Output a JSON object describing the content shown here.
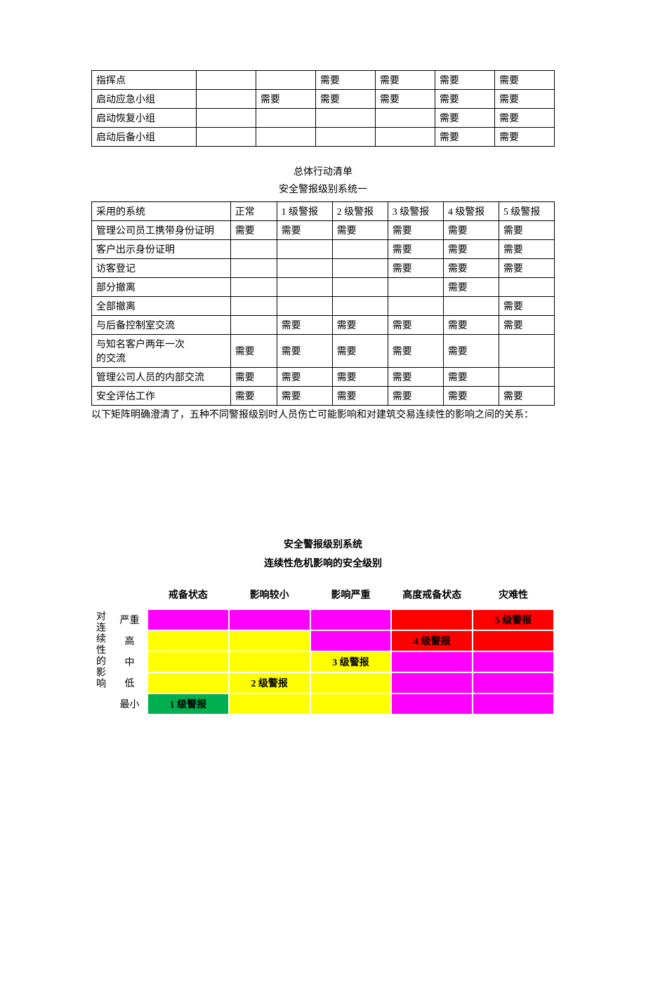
{
  "colors": {
    "text": "#000000",
    "background": "#ffffff",
    "border": "#000000",
    "cell_border": "#ffffff",
    "green": "#00b050",
    "yellow": "#ffff00",
    "magenta": "#ff00ff",
    "red": "#ff0000"
  },
  "table1": {
    "type": "table",
    "rows": [
      [
        "指挥点",
        "",
        "",
        "需要",
        "需要",
        "需要",
        "需要"
      ],
      [
        "启动应急小组",
        "",
        "需要",
        "需要",
        "需要",
        "需要",
        "需要"
      ],
      [
        "启动恢复小组",
        "",
        "",
        "",
        "",
        "需要",
        "需要"
      ],
      [
        "启动后备小组",
        "",
        "",
        "",
        "",
        "需要",
        "需要"
      ]
    ],
    "col_widths_pct": [
      21,
      12,
      12,
      12,
      12,
      12,
      12
    ]
  },
  "section_title1": "总体行动清单",
  "section_title2": "安全警报级别系统一",
  "table2": {
    "type": "table",
    "columns": [
      "采用的系统",
      "正常",
      "1 级警报",
      "2 级警报",
      "3 级警报",
      "4 级警报",
      "5 级警报"
    ],
    "rows": [
      [
        "管理公司员工携带身份证明",
        "需要",
        "需要",
        "需要",
        "需要",
        "需要",
        "需要"
      ],
      [
        "客户出示身份证明",
        "",
        "",
        "",
        "需要",
        "需要",
        "需要"
      ],
      [
        "访客登记",
        "",
        "",
        "",
        "需要",
        "需要",
        "需要"
      ],
      [
        "部分撤离",
        "",
        "",
        "",
        "",
        "需要",
        ""
      ],
      [
        "全部撤离",
        "",
        "",
        "",
        "",
        "",
        "需要"
      ],
      [
        "与后备控制室交流",
        "",
        "需要",
        "需要",
        "需要",
        "需要",
        "需要"
      ],
      [
        "与知名客户两年一次\n的交流",
        "需要",
        "需要",
        "需要",
        "需要",
        "需要",
        ""
      ],
      [
        "管理公司人员的内部交流",
        "需要",
        "需要",
        "需要",
        "需要",
        "需要",
        ""
      ],
      [
        "安全评估工作",
        "需要",
        "需要",
        "需要",
        "需要",
        "需要",
        "需要"
      ]
    ],
    "col_widths_pct": [
      30,
      10,
      12,
      12,
      12,
      12,
      12
    ]
  },
  "paragraph1": "以下矩阵明确澄清了，五种不同警报级别时人员伤亡可能影响和对建筑交易连续性的影响之间的关系：",
  "matrix": {
    "type": "heatmap",
    "title1": "安全警报级别系统",
    "title2": "连续性危机影响的安全级别",
    "vlabel": "对连续性的影响",
    "col_headers": [
      "戒备状态",
      "影响较小",
      "影响严重",
      "高度戒备状态",
      "灾难性"
    ],
    "row_headers": [
      "严重",
      "高",
      "中",
      "低",
      "最小"
    ],
    "cells": [
      [
        {
          "text": "",
          "color": "#ff00ff"
        },
        {
          "text": "",
          "color": "#ff00ff"
        },
        {
          "text": "",
          "color": "#ff00ff"
        },
        {
          "text": "",
          "color": "#ff0000"
        },
        {
          "text": "5 级警报",
          "color": "#ff0000",
          "text_color": "#000000"
        }
      ],
      [
        {
          "text": "",
          "color": "#ffff00"
        },
        {
          "text": "",
          "color": "#ffff00"
        },
        {
          "text": "",
          "color": "#ff00ff"
        },
        {
          "text": "4 级警报",
          "color": "#ff0000",
          "text_color": "#000000"
        },
        {
          "text": "",
          "color": "#ff0000"
        }
      ],
      [
        {
          "text": "",
          "color": "#ffff00"
        },
        {
          "text": "",
          "color": "#ffff00"
        },
        {
          "text": "3 级警报",
          "color": "#ffff00",
          "text_color": "#000000"
        },
        {
          "text": "",
          "color": "#ff00ff"
        },
        {
          "text": "",
          "color": "#ff00ff"
        }
      ],
      [
        {
          "text": "",
          "color": "#ffff00"
        },
        {
          "text": "2 级警报",
          "color": "#ffff00",
          "text_color": "#000000"
        },
        {
          "text": "",
          "color": "#ffff00"
        },
        {
          "text": "",
          "color": "#ff00ff"
        },
        {
          "text": "",
          "color": "#ff00ff"
        }
      ],
      [
        {
          "text": "1 级警报",
          "color": "#00b050",
          "text_color": "#000000"
        },
        {
          "text": "",
          "color": "#ffff00"
        },
        {
          "text": "",
          "color": "#ffff00"
        },
        {
          "text": "",
          "color": "#ff00ff"
        },
        {
          "text": "",
          "color": "#ff00ff"
        }
      ]
    ]
  }
}
